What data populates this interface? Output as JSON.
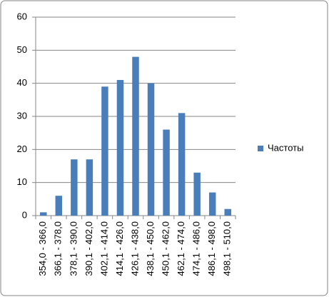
{
  "chart_data": {
    "type": "bar",
    "categories": [
      "354,0 - 366,0",
      "366,1 - 378,0",
      "378,1 - 390,0",
      "390,1 - 402,0",
      "402,1 - 414,0",
      "414,1 - 426,0",
      "426,1 - 438,0",
      "438,1 - 450,0",
      "450,1 - 462,0",
      "462,1 - 474,0",
      "474,1 - 486,0",
      "486,1 - 498,0",
      "498,1 - 510,0"
    ],
    "series": [
      {
        "name": "Частоты",
        "color": "#4a7ebb",
        "values": [
          1,
          6,
          17,
          17,
          39,
          41,
          48,
          40,
          26,
          31,
          13,
          7,
          2
        ]
      }
    ],
    "ylim": [
      0,
      60
    ],
    "yticks": [
      0,
      10,
      20,
      30,
      40,
      50,
      60
    ],
    "grid": true,
    "legend": "right"
  }
}
